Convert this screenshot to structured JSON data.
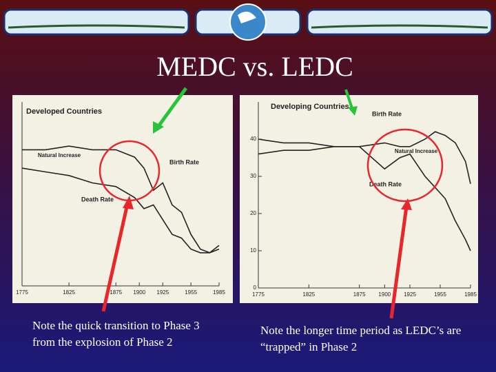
{
  "title": "MEDC vs. LEDC",
  "notes": [
    "Note the quick transition to Phase 3 from the explosion of Phase 2",
    "Note the longer time period as LEDC’s are “trapped” in Phase 2"
  ],
  "chart_data": [
    {
      "type": "line",
      "title": "Developed Countries",
      "x": [
        1775,
        1800,
        1825,
        1850,
        1875,
        1895,
        1905,
        1915,
        1925,
        1935,
        1945,
        1955,
        1965,
        1975,
        1985
      ],
      "xlim": [
        1775,
        1985
      ],
      "xticks": [
        1775,
        1825,
        1875,
        1900,
        1925,
        1955,
        1985
      ],
      "ylim": [
        0,
        50
      ],
      "series": [
        {
          "name": "Birth Rate",
          "color": "#222222",
          "values": [
            37,
            37,
            38,
            37,
            37,
            35,
            32,
            26,
            28,
            22,
            20,
            14,
            10,
            9,
            11
          ]
        },
        {
          "name": "Death Rate",
          "color": "#222222",
          "values": [
            32,
            31,
            30,
            28,
            27,
            24,
            21,
            22,
            18,
            14,
            13,
            10,
            9,
            9,
            10
          ]
        }
      ],
      "annotations": [
        "Natural Increase"
      ]
    },
    {
      "type": "line",
      "title": "Developing Countries",
      "x": [
        1775,
        1800,
        1825,
        1850,
        1875,
        1900,
        1915,
        1925,
        1940,
        1950,
        1960,
        1970,
        1980,
        1985
      ],
      "xlim": [
        1775,
        1985
      ],
      "xticks": [
        1775,
        1825,
        1875,
        1900,
        1925,
        1955,
        1985
      ],
      "ylim": [
        0,
        50
      ],
      "yticks": [
        0,
        10,
        20,
        30,
        40
      ],
      "series": [
        {
          "name": "Birth Rate",
          "color": "#222222",
          "values": [
            40,
            39,
            39,
            38,
            38,
            39,
            38,
            38,
            40,
            42,
            41,
            39,
            34,
            28
          ]
        },
        {
          "name": "Death Rate",
          "color": "#222222",
          "values": [
            36,
            37,
            37,
            38,
            38,
            32,
            35,
            36,
            30,
            27,
            24,
            18,
            13,
            10
          ]
        }
      ],
      "annotations": [
        "Natural Increase"
      ]
    }
  ]
}
